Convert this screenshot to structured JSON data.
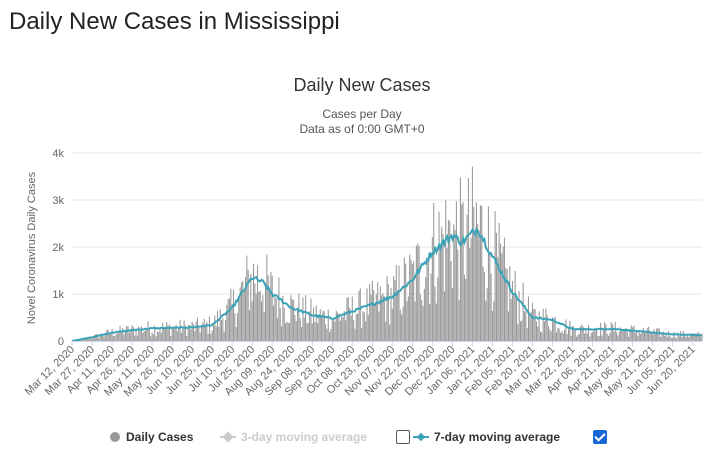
{
  "page": {
    "title": "Daily New Cases in Mississippi"
  },
  "chart_data": {
    "type": "bar",
    "title": "Daily New Cases",
    "subtitle_line1": "Cases per Day",
    "subtitle_line2": "Data as of 0:00 GMT+0",
    "ylabel": "Novel Coronavirus Daily Cases",
    "xlabel": "",
    "ylim": [
      0,
      4000
    ],
    "yticks": [
      0,
      1000,
      2000,
      3000,
      4000
    ],
    "ytick_labels": [
      "0",
      "1k",
      "2k",
      "3k",
      "4k"
    ],
    "grid": true,
    "legend_placement": "bottom",
    "x_start": "Mar 12, 2020",
    "x_end": "Jun 27, 2021",
    "xtick_labels": [
      "Mar 12, 2020",
      "Mar 27, 2020",
      "Apr 11, 2020",
      "Apr 26, 2020",
      "May 11, 2020",
      "May 26, 2020",
      "Jun 10, 2020",
      "Jun 25, 2020",
      "Jul 10, 2020",
      "Jul 25, 2020",
      "Aug 09, 2020",
      "Aug 24, 2020",
      "Sep 08, 2020",
      "Sep 23, 2020",
      "Oct 08, 2020",
      "Oct 23, 2020",
      "Nov 07, 2020",
      "Nov 22, 2020",
      "Dec 07, 2020",
      "Dec 22, 2020",
      "Jan 06, 2021",
      "Jan 21, 2021",
      "Feb 05, 2021",
      "Feb 20, 2021",
      "Mar 07, 2021",
      "Mar 22, 2021",
      "Apr 06, 2021",
      "Apr 21, 2021",
      "May 06, 2021",
      "May 21, 2021",
      "Jun 05, 2021",
      "Jun 20, 2021"
    ],
    "series": [
      {
        "name": "Daily Cases",
        "style": "bar",
        "color": "#999999"
      },
      {
        "name": "3-day moving average",
        "style": "line",
        "color": "#cccccc",
        "visible": false
      },
      {
        "name": "7-day moving average",
        "style": "line",
        "color": "#3ba3b8",
        "visible": true
      }
    ],
    "trend_keypoints_7day": [
      [
        "Mar 12, 2020",
        0
      ],
      [
        "Mar 27, 2020",
        80
      ],
      [
        "Apr 11, 2020",
        180
      ],
      [
        "Apr 26, 2020",
        230
      ],
      [
        "May 11, 2020",
        270
      ],
      [
        "May 26, 2020",
        280
      ],
      [
        "Jun 10, 2020",
        290
      ],
      [
        "Jun 25, 2020",
        340
      ],
      [
        "Jul 10, 2020",
        700
      ],
      [
        "Jul 25, 2020",
        1350
      ],
      [
        "Aug 02, 2020",
        1250
      ],
      [
        "Aug 09, 2020",
        1000
      ],
      [
        "Aug 24, 2020",
        700
      ],
      [
        "Sep 08, 2020",
        550
      ],
      [
        "Sep 23, 2020",
        480
      ],
      [
        "Oct 08, 2020",
        630
      ],
      [
        "Oct 23, 2020",
        780
      ],
      [
        "Nov 07, 2020",
        950
      ],
      [
        "Nov 22, 2020",
        1300
      ],
      [
        "Dec 07, 2020",
        1900
      ],
      [
        "Dec 22, 2020",
        2250
      ],
      [
        "Dec 29, 2020",
        2100
      ],
      [
        "Jan 06, 2021",
        2300
      ],
      [
        "Jan 10, 2021",
        2400
      ],
      [
        "Jan 21, 2021",
        1800
      ],
      [
        "Feb 05, 2021",
        1050
      ],
      [
        "Feb 20, 2021",
        500
      ],
      [
        "Mar 07, 2021",
        450
      ],
      [
        "Mar 22, 2021",
        250
      ],
      [
        "Apr 06, 2021",
        250
      ],
      [
        "Apr 21, 2021",
        260
      ],
      [
        "May 06, 2021",
        220
      ],
      [
        "May 21, 2021",
        180
      ],
      [
        "Jun 05, 2021",
        140
      ],
      [
        "Jun 20, 2021",
        130
      ],
      [
        "Jun 27, 2021",
        120
      ]
    ]
  },
  "legend": {
    "daily_cases": "Daily Cases",
    "three_day": "3-day moving average",
    "seven_day": "7-day moving average"
  }
}
